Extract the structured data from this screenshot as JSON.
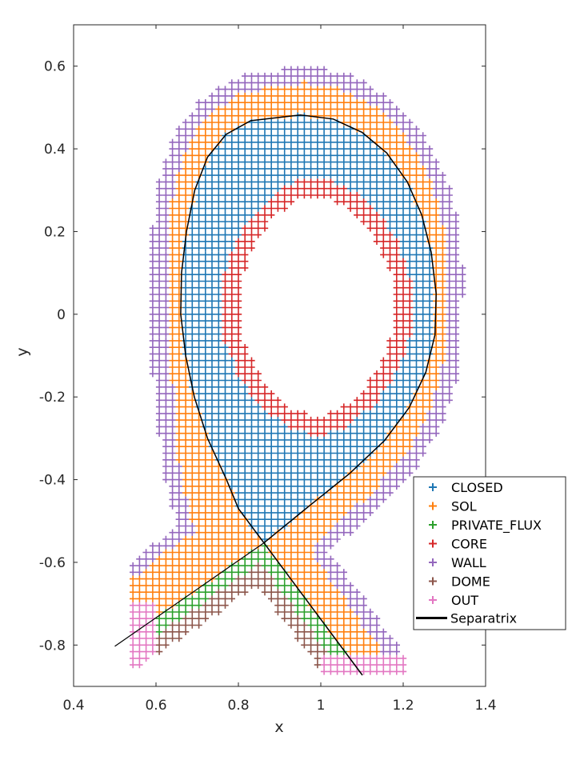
{
  "chart_data": {
    "type": "scatter",
    "title": "",
    "xlabel": "x",
    "ylabel": "y",
    "xlim": [
      0.4,
      1.4
    ],
    "ylim": [
      -0.9,
      0.7
    ],
    "xticks": [
      "0.4",
      "0.6",
      "0.8",
      "1",
      "1.2",
      "1.4"
    ],
    "xtick_values": [
      0.4,
      0.6,
      0.8,
      1.0,
      1.2,
      1.4
    ],
    "yticks": [
      "0.6",
      "0.4",
      "0.2",
      "0",
      "-0.2",
      "-0.4",
      "-0.6",
      "-0.8"
    ],
    "ytick_values": [
      0.6,
      0.4,
      0.2,
      0,
      -0.2,
      -0.4,
      -0.6,
      -0.8
    ],
    "grid": false,
    "legend_placement": "lower-right",
    "marker": "+",
    "grid_spacing": 0.016,
    "series": [
      {
        "name": "CLOSED",
        "color": "#1f77b4"
      },
      {
        "name": "SOL",
        "color": "#ff7f0e"
      },
      {
        "name": "PRIVATE_FLUX",
        "color": "#2ca02c"
      },
      {
        "name": "CORE",
        "color": "#d62728"
      },
      {
        "name": "WALL",
        "color": "#9467bd"
      },
      {
        "name": "DOME",
        "color": "#8c564b"
      },
      {
        "name": "OUT",
        "color": "#e377c2"
      }
    ],
    "separatrix": {
      "name": "Separatrix",
      "color": "#000000",
      "x_point": [
        0.862,
        -0.553
      ],
      "closed_curve": [
        [
          0.862,
          -0.553
        ],
        [
          0.8,
          -0.47
        ],
        [
          0.771,
          -0.4
        ],
        [
          0.725,
          -0.3
        ],
        [
          0.693,
          -0.2
        ],
        [
          0.672,
          -0.1
        ],
        [
          0.66,
          0.0
        ],
        [
          0.662,
          0.1
        ],
        [
          0.674,
          0.2
        ],
        [
          0.694,
          0.3
        ],
        [
          0.725,
          0.38
        ],
        [
          0.77,
          0.435
        ],
        [
          0.83,
          0.468
        ],
        [
          0.95,
          0.482
        ],
        [
          1.03,
          0.472
        ],
        [
          1.1,
          0.44
        ],
        [
          1.16,
          0.39
        ],
        [
          1.21,
          0.32
        ],
        [
          1.245,
          0.24
        ],
        [
          1.268,
          0.15
        ],
        [
          1.28,
          0.05
        ],
        [
          1.277,
          -0.05
        ],
        [
          1.255,
          -0.14
        ],
        [
          1.215,
          -0.225
        ],
        [
          1.155,
          -0.305
        ],
        [
          1.07,
          -0.385
        ],
        [
          0.97,
          -0.465
        ],
        [
          0.862,
          -0.553
        ]
      ],
      "legs": [
        [
          [
            0.862,
            -0.553
          ],
          [
            0.5,
            -0.803
          ]
        ],
        [
          [
            0.862,
            -0.553
          ],
          [
            1.101,
            -0.873
          ]
        ]
      ]
    },
    "core_ring": {
      "center": [
        0.99,
        0.02
      ],
      "outer_radii": [
        0.235,
        0.31
      ],
      "inner_radii": [
        0.19,
        0.265
      ]
    },
    "sol_wall_width_by_angle": [
      {
        "angle": 0,
        "sol": 0.02,
        "wall": 0.06
      },
      {
        "angle": 45,
        "sol": 0.05,
        "wall": 0.09
      },
      {
        "angle": 90,
        "sol": 0.08,
        "wall": 0.12
      },
      {
        "angle": 135,
        "sol": 0.05,
        "wall": 0.09
      },
      {
        "angle": 180,
        "sol": 0.03,
        "wall": 0.07
      },
      {
        "angle": 215,
        "sol": 0.05,
        "wall": 0.1
      },
      {
        "angle": 240,
        "sol": 0.12,
        "wall": 0.16
      },
      {
        "angle": 265,
        "sol": 0.08,
        "wall": 0.12
      },
      {
        "angle": 290,
        "sol": 0.07,
        "wall": 0.11
      },
      {
        "angle": 320,
        "sol": 0.05,
        "wall": 0.09
      },
      {
        "angle": 360,
        "sol": 0.02,
        "wall": 0.06
      }
    ],
    "private_flux_width": 0.035,
    "dome_width": 0.075,
    "domain_limits": {
      "xmin": 0.53,
      "ymin": -0.87
    },
    "out_regions": [
      {
        "xmax": 0.6,
        "ymax": -0.69
      },
      {
        "xmin": 1.0,
        "ymax": -0.83
      }
    ]
  }
}
